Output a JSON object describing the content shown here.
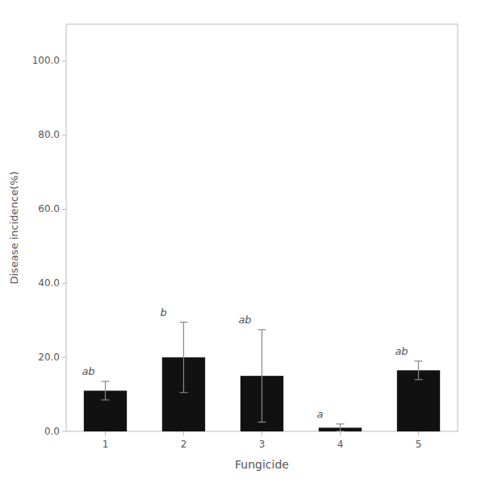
{
  "chart_data": {
    "type": "bar",
    "categories": [
      "1",
      "2",
      "3",
      "4",
      "5"
    ],
    "values": [
      11.0,
      20.0,
      15.0,
      1.0,
      16.5
    ],
    "errors": [
      2.5,
      9.5,
      12.5,
      1.0,
      2.5
    ],
    "annotations": [
      "ab",
      "b",
      "ab",
      "a",
      "ab"
    ],
    "color": "#111111",
    "xlabel": "Fungicide",
    "ylabel": "Disease incidence(%)",
    "ylim": [
      0.0,
      110.0
    ],
    "yticks": [
      {
        "value": 0.0,
        "label": "0.0"
      },
      {
        "value": 20.0,
        "label": "20.0"
      },
      {
        "value": 40.0,
        "label": "40.0"
      },
      {
        "value": 60.0,
        "label": "60.0"
      },
      {
        "value": 80.0,
        "label": "80.0"
      },
      {
        "value": 100.0,
        "label": "100.0"
      }
    ],
    "grid": false
  }
}
